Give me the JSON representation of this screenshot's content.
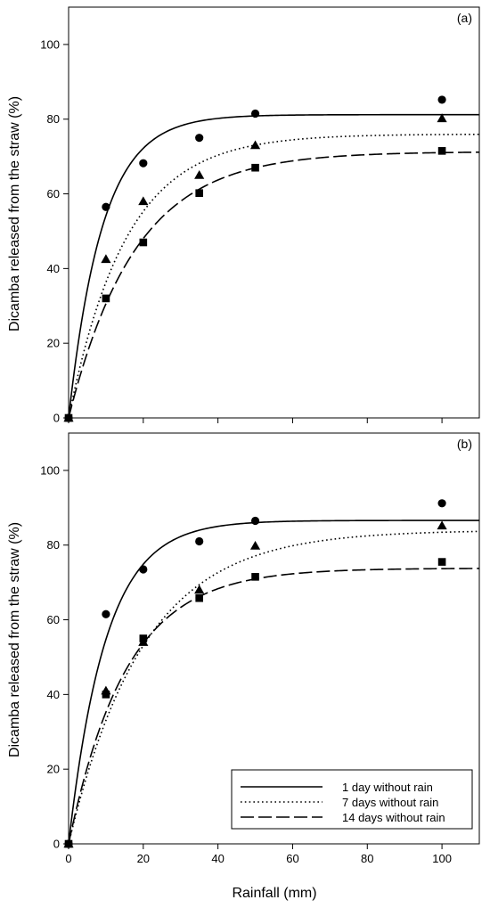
{
  "figure": {
    "ylabel": "Dicamba released from the straw (%)",
    "xlabel": "Rainfall (mm)"
  },
  "legend": {
    "entries": [
      {
        "label": "1 day without rain",
        "dash": "solid"
      },
      {
        "label": "7 days without rain",
        "dash": "dotted"
      },
      {
        "label": "14 days without rain",
        "dash": "dashed"
      }
    ]
  },
  "chart_data": [
    {
      "type": "scatter",
      "panel_label": "(a)",
      "xlim": [
        0,
        110
      ],
      "ylim": [
        0,
        110
      ],
      "xticks": [
        0,
        20,
        40,
        60,
        80,
        100
      ],
      "yticks": [
        0,
        20,
        40,
        60,
        80,
        100
      ],
      "x": [
        0,
        10,
        20,
        35,
        50,
        100
      ],
      "series": [
        {
          "name": "1 day without rain",
          "marker": "circle",
          "line": "solid",
          "values": [
            0,
            56.5,
            68.2,
            75.0,
            81.5,
            85.2
          ],
          "fit": {
            "asymptote": 81.2,
            "rate": 0.11
          }
        },
        {
          "name": "7 days without rain",
          "marker": "triangle",
          "line": "dotted",
          "values": [
            0,
            42.5,
            58.0,
            65.0,
            73.0,
            80.2
          ],
          "fit": {
            "asymptote": 76.0,
            "rate": 0.065
          }
        },
        {
          "name": "14 days without rain",
          "marker": "square",
          "line": "dashed",
          "values": [
            0,
            32.0,
            47.0,
            60.2,
            67.0,
            71.5
          ],
          "fit": {
            "asymptote": 71.3,
            "rate": 0.056
          }
        }
      ]
    },
    {
      "type": "scatter",
      "panel_label": "(b)",
      "xlim": [
        0,
        110
      ],
      "ylim": [
        0,
        110
      ],
      "xticks": [
        0,
        20,
        40,
        60,
        80,
        100
      ],
      "yticks": [
        0,
        20,
        40,
        60,
        80,
        100
      ],
      "x": [
        0,
        10,
        20,
        35,
        50,
        100
      ],
      "series": [
        {
          "name": "1 day without rain",
          "marker": "circle",
          "line": "solid",
          "values": [
            0,
            61.5,
            73.5,
            81.0,
            86.5,
            91.2
          ],
          "fit": {
            "asymptote": 86.6,
            "rate": 0.1
          }
        },
        {
          "name": "7 days without rain",
          "marker": "triangle",
          "line": "dotted",
          "values": [
            0,
            41.0,
            54.0,
            68.0,
            79.8,
            85.2
          ],
          "fit": {
            "asymptote": 84.0,
            "rate": 0.05
          }
        },
        {
          "name": "14 days without rain",
          "marker": "square",
          "line": "dashed",
          "values": [
            0,
            40.0,
            55.0,
            65.8,
            71.5,
            75.5
          ],
          "fit": {
            "asymptote": 73.8,
            "rate": 0.065
          }
        }
      ]
    }
  ]
}
